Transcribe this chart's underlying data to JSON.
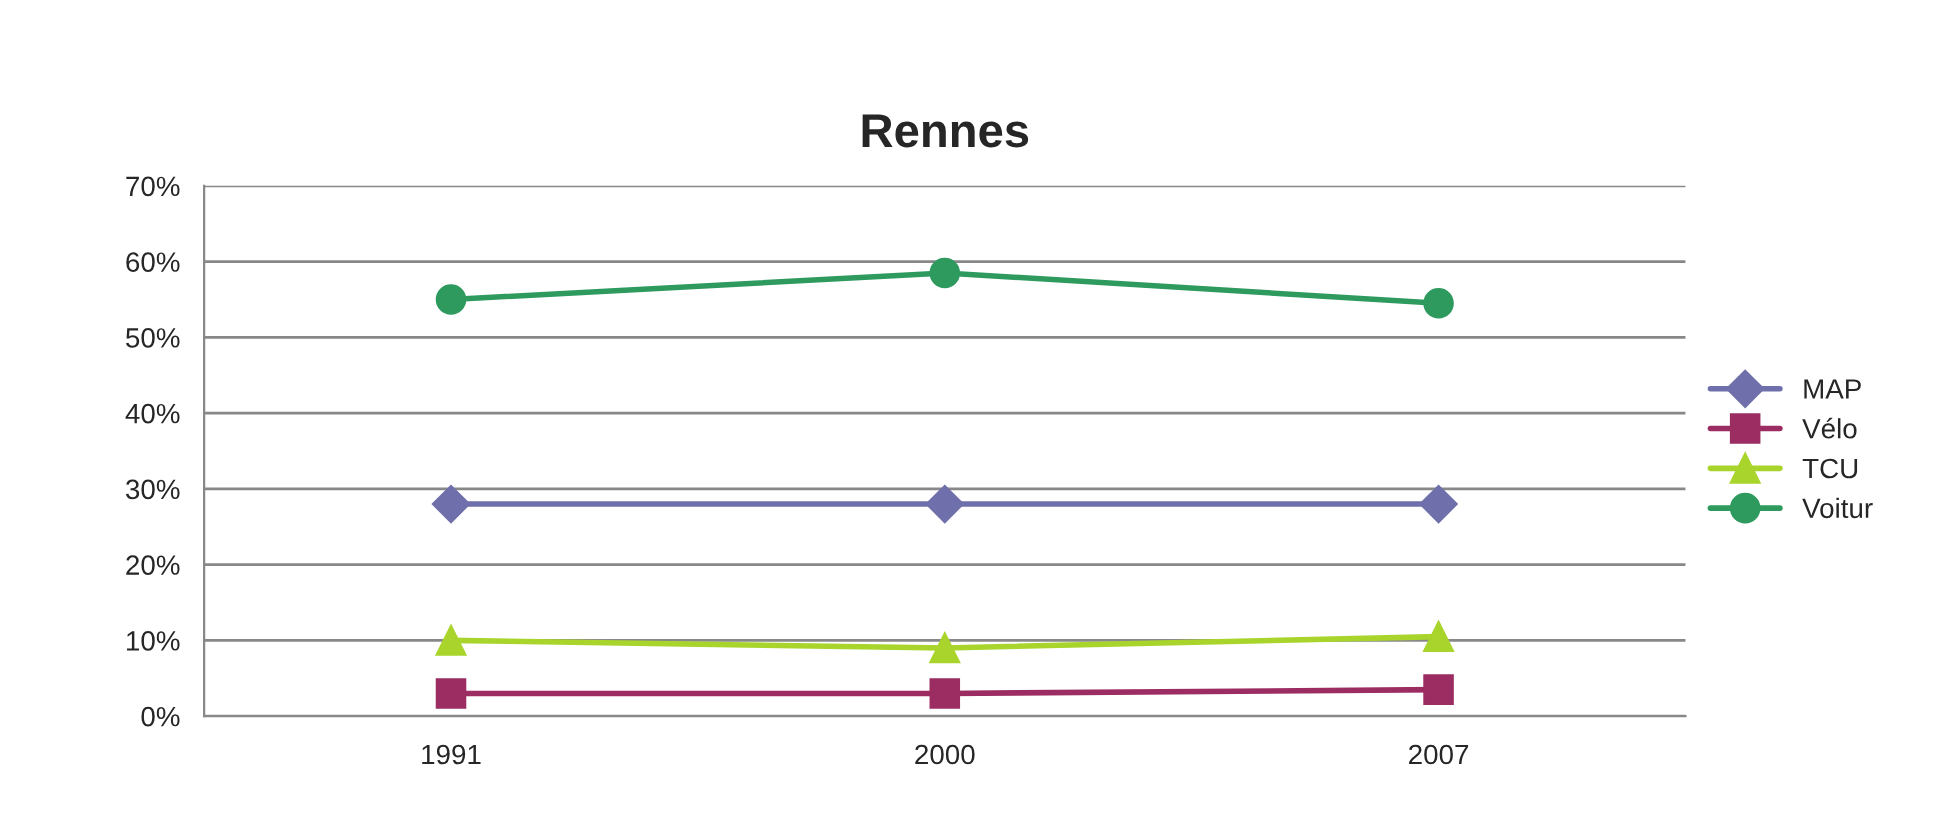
{
  "chart_data": {
    "type": "line",
    "title": "Rennes",
    "categories": [
      "1991",
      "2000",
      "2007"
    ],
    "series": [
      {
        "name": "MAP",
        "color": "#6f70ab",
        "marker": "diamond",
        "values": [
          28,
          28,
          28
        ]
      },
      {
        "name": "Vélo",
        "color": "#9b2d62",
        "marker": "square",
        "values": [
          3,
          3,
          3.5
        ]
      },
      {
        "name": "TCU",
        "color": "#a8d42c",
        "marker": "triangle",
        "values": [
          10,
          9,
          10.5
        ]
      },
      {
        "name": "Voitur",
        "color": "#2e9a5e",
        "marker": "circle",
        "values": [
          55,
          58.5,
          54.5
        ]
      }
    ],
    "ylim": [
      0,
      70
    ],
    "yticks": [
      {
        "value": 0,
        "label": "0%"
      },
      {
        "value": 10,
        "label": "10%"
      },
      {
        "value": 20,
        "label": "20%"
      },
      {
        "value": 30,
        "label": "30%"
      },
      {
        "value": 40,
        "label": "40%"
      },
      {
        "value": 50,
        "label": "50%"
      },
      {
        "value": 60,
        "label": "60%"
      },
      {
        "value": 70,
        "label": "70%"
      }
    ],
    "grid": "y",
    "legend": "right",
    "line_style": "solid"
  }
}
